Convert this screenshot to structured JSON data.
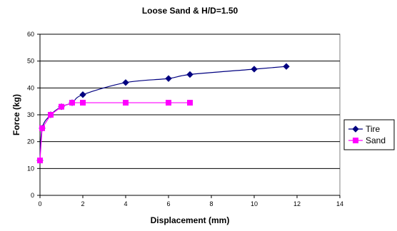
{
  "chart_data": {
    "type": "line",
    "title": "Loose Sand & H/D=1.50",
    "xlabel": "Displacement (mm)",
    "ylabel": "Force (kg)",
    "xlim": [
      0,
      14
    ],
    "ylim": [
      0,
      60
    ],
    "x_ticks": [
      0,
      2,
      4,
      6,
      8,
      10,
      12,
      14
    ],
    "y_ticks": [
      0,
      10,
      20,
      30,
      40,
      50,
      60
    ],
    "grid": "horizontal",
    "legend_position": "right",
    "series": [
      {
        "name": "Tire",
        "color": "#000080",
        "marker": "diamond",
        "smooth": true,
        "x": [
          0,
          0.1,
          0.5,
          1,
          1.5,
          2,
          4,
          6,
          7,
          10,
          11.5
        ],
        "y": [
          13,
          25,
          30,
          33,
          34.5,
          37.5,
          42,
          43.5,
          45,
          47,
          48
        ]
      },
      {
        "name": "Sand",
        "color": "#FF00FF",
        "marker": "square",
        "smooth": false,
        "x": [
          0,
          0.1,
          0.5,
          1,
          1.5,
          2,
          4,
          6,
          7
        ],
        "y": [
          13,
          25,
          30,
          33,
          34.5,
          34.5,
          34.5,
          34.5,
          34.5
        ]
      }
    ]
  }
}
